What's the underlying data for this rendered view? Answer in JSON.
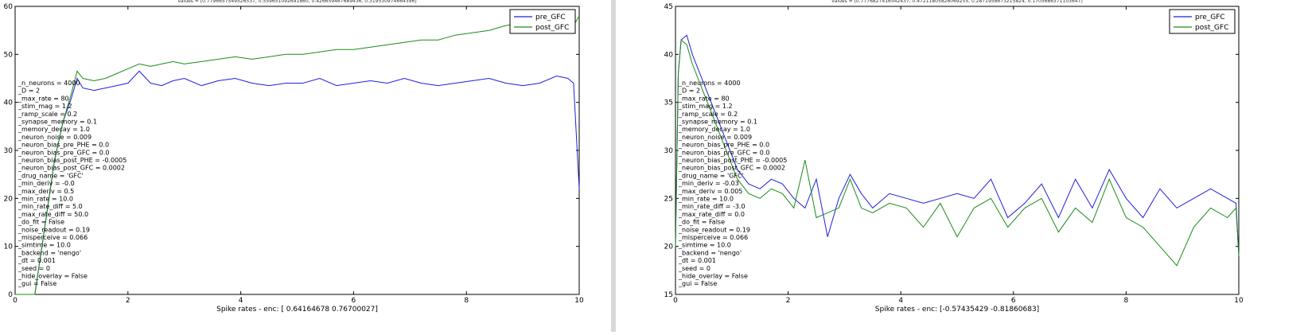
{
  "panels": [
    {
      "top_text": "values = [0.7796657549526537, 0.559651092691860, 0.426659467689436, 0.319530974664396]",
      "xlabel": "Spike rates - enc: [ 0.64164678  0.76700027]",
      "legend": [
        "pre_GFC",
        "post_GFC"
      ],
      "params": [
        "_n_neurons = 4000",
        "_D = 2",
        "_max_rate = 80",
        "_stim_mag = 1.2",
        "_ramp_scale = 0.2",
        "_synapse_memory = 0.1",
        "_memory_decay = 1.0",
        "_neuron_noise = 0.009",
        "_neuron_bias_pre_PHE = 0.0",
        "_neuron_bias_pre_GFC = 0.0",
        "_neuron_bias_post_PHE = -0.0005",
        "_neuron_bias_post_GFC = 0.0002",
        "_drug_name = 'GFC'",
        "_min_deriv = -0.0",
        "_max_deriv = 0.5",
        "_min_rate = 10.0",
        "_min_rate_diff = 5.0",
        "_max_rate_diff = 50.0",
        "_do_fit = False",
        "_noise_readout = 0.19",
        "_misperceive = 0.066",
        "_simtime = 10.0",
        "_backend = 'nengo'",
        "_dt = 0.001",
        "_seed = 0",
        "_hide_overlay = False",
        "_gui = False"
      ]
    },
    {
      "top_text": "values = [0.7776827416542437, 0.47211805826069255, 0.2871958673215824, 0.1705686371103647]",
      "xlabel": "Spike rates - enc: [-0.57435429 -0.81860683]",
      "legend": [
        "pre_GFC",
        "post_GFC"
      ],
      "params": [
        "_n_neurons = 4000",
        "_D = 2",
        "_max_rate = 80",
        "_stim_mag = 1.2",
        "_ramp_scale = 0.2",
        "_synapse_memory = 0.1",
        "_memory_decay = 1.0",
        "_neuron_noise = 0.009",
        "_neuron_bias_pre_PHE = 0.0",
        "_neuron_bias_pre_GFC = 0.0",
        "_neuron_bias_post_PHE = -0.0005",
        "_neuron_bias_post_GFC = 0.0002",
        "_drug_name = 'GFC'",
        "_min_deriv = -0.03",
        "_max_deriv = 0.005",
        "_min_rate = 10.0",
        "_min_rate_diff = -3.0",
        "_max_rate_diff = 0.0",
        "_do_fit = False",
        "_noise_readout = 0.19",
        "_misperceive = 0.066",
        "_simtime = 10.0",
        "_backend = 'nengo'",
        "_dt = 0.001",
        "_seed = 0",
        "_hide_overlay = False",
        "_gui = False"
      ]
    }
  ],
  "chart_data": [
    {
      "type": "line",
      "xlabel": "Spike rates - enc: [ 0.64164678  0.76700027]",
      "xlim": [
        0,
        10
      ],
      "ylim": [
        0,
        60
      ],
      "xticks": [
        0,
        2,
        4,
        6,
        8,
        10
      ],
      "yticks": [
        0,
        10,
        20,
        30,
        40,
        50,
        60
      ],
      "legend_position": "top-right",
      "grid": false,
      "series": [
        {
          "name": "pre_GFC",
          "color": "#1f1fdc",
          "x": [
            0,
            0.35,
            0.5,
            0.7,
            0.85,
            1.0,
            1.1,
            1.2,
            1.4,
            1.6,
            1.8,
            2.0,
            2.2,
            2.4,
            2.6,
            2.8,
            3.0,
            3.3,
            3.6,
            3.9,
            4.2,
            4.5,
            4.8,
            5.1,
            5.4,
            5.7,
            6.0,
            6.3,
            6.6,
            6.9,
            7.2,
            7.5,
            7.8,
            8.1,
            8.4,
            8.7,
            9.0,
            9.3,
            9.6,
            9.8,
            9.9,
            10.0
          ],
          "y": [
            0,
            0,
            12,
            28,
            36,
            41,
            45,
            43,
            42.5,
            43,
            43.5,
            44,
            46.5,
            44,
            43.5,
            44.5,
            45,
            43.5,
            44.5,
            45,
            44,
            43.5,
            44,
            44,
            45,
            43.5,
            44,
            44.5,
            44,
            45,
            44,
            43.5,
            44,
            44.5,
            45,
            44,
            43.5,
            44,
            45.5,
            45,
            44,
            22
          ]
        },
        {
          "name": "post_GFC",
          "color": "#1a8c1a",
          "x": [
            0,
            0.35,
            0.5,
            0.7,
            0.85,
            1.0,
            1.1,
            1.2,
            1.4,
            1.6,
            1.8,
            2.0,
            2.2,
            2.4,
            2.6,
            2.8,
            3.0,
            3.3,
            3.6,
            3.9,
            4.2,
            4.5,
            4.8,
            5.1,
            5.4,
            5.7,
            6.0,
            6.3,
            6.6,
            6.9,
            7.2,
            7.5,
            7.8,
            8.1,
            8.4,
            8.7,
            9.0,
            9.3,
            9.6,
            9.8,
            9.9,
            10.0
          ],
          "y": [
            0,
            0,
            12,
            28,
            36,
            42,
            46.5,
            45,
            44.5,
            45,
            46,
            47,
            48,
            47.5,
            48,
            48.5,
            48,
            48.5,
            49,
            49.5,
            49,
            49.5,
            50,
            50,
            50.5,
            51,
            51,
            51.5,
            52,
            52.5,
            53,
            53,
            54,
            54.5,
            55,
            56,
            56.5,
            56,
            56,
            55.5,
            56,
            58
          ]
        }
      ]
    },
    {
      "type": "line",
      "xlabel": "Spike rates - enc: [-0.57435429 -0.81860683]",
      "xlim": [
        0,
        10
      ],
      "ylim": [
        15,
        45
      ],
      "xticks": [
        0,
        2,
        4,
        6,
        8,
        10
      ],
      "yticks": [
        15,
        20,
        25,
        30,
        35,
        40,
        45
      ],
      "legend_position": "top-right",
      "grid": false,
      "series": [
        {
          "name": "pre_GFC",
          "color": "#1f1fdc",
          "x": [
            0,
            0.05,
            0.1,
            0.2,
            0.3,
            0.5,
            0.7,
            0.9,
            1.1,
            1.3,
            1.5,
            1.7,
            1.9,
            2.1,
            2.3,
            2.5,
            2.7,
            2.9,
            3.1,
            3.3,
            3.5,
            3.8,
            4.1,
            4.4,
            4.7,
            5.0,
            5.3,
            5.6,
            5.9,
            6.2,
            6.5,
            6.8,
            7.1,
            7.4,
            7.7,
            8.0,
            8.3,
            8.6,
            8.9,
            9.2,
            9.5,
            9.8,
            9.95,
            10.0
          ],
          "y": [
            20,
            38,
            41.5,
            42,
            40,
            37,
            34,
            31,
            28,
            26.5,
            26,
            27,
            26.5,
            25,
            24,
            27,
            21,
            25,
            27.5,
            25.5,
            24,
            25.5,
            25,
            24.5,
            25,
            25.5,
            25,
            27,
            23,
            24.5,
            26.5,
            23,
            27,
            24,
            28,
            25,
            23,
            26,
            24,
            25,
            26,
            25,
            24.5,
            19
          ]
        },
        {
          "name": "post_GFC",
          "color": "#1a8c1a",
          "x": [
            0,
            0.05,
            0.1,
            0.2,
            0.3,
            0.5,
            0.7,
            0.9,
            1.1,
            1.3,
            1.5,
            1.7,
            1.9,
            2.1,
            2.3,
            2.5,
            2.7,
            2.9,
            3.1,
            3.3,
            3.5,
            3.8,
            4.1,
            4.4,
            4.7,
            5.0,
            5.3,
            5.6,
            5.9,
            6.2,
            6.5,
            6.8,
            7.1,
            7.4,
            7.7,
            8.0,
            8.3,
            8.6,
            8.9,
            9.2,
            9.5,
            9.8,
            9.95,
            10.0
          ],
          "y": [
            20,
            38,
            41.5,
            41,
            39,
            36,
            33,
            30,
            27,
            25.5,
            25,
            26,
            25.5,
            24,
            29,
            23,
            23.5,
            24,
            27,
            24,
            23.5,
            24.5,
            24,
            22,
            24.5,
            21,
            24,
            25,
            22,
            24,
            25,
            21.5,
            24,
            22.5,
            27,
            23,
            22,
            20,
            18,
            22,
            24,
            23,
            24,
            19
          ]
        }
      ]
    }
  ]
}
